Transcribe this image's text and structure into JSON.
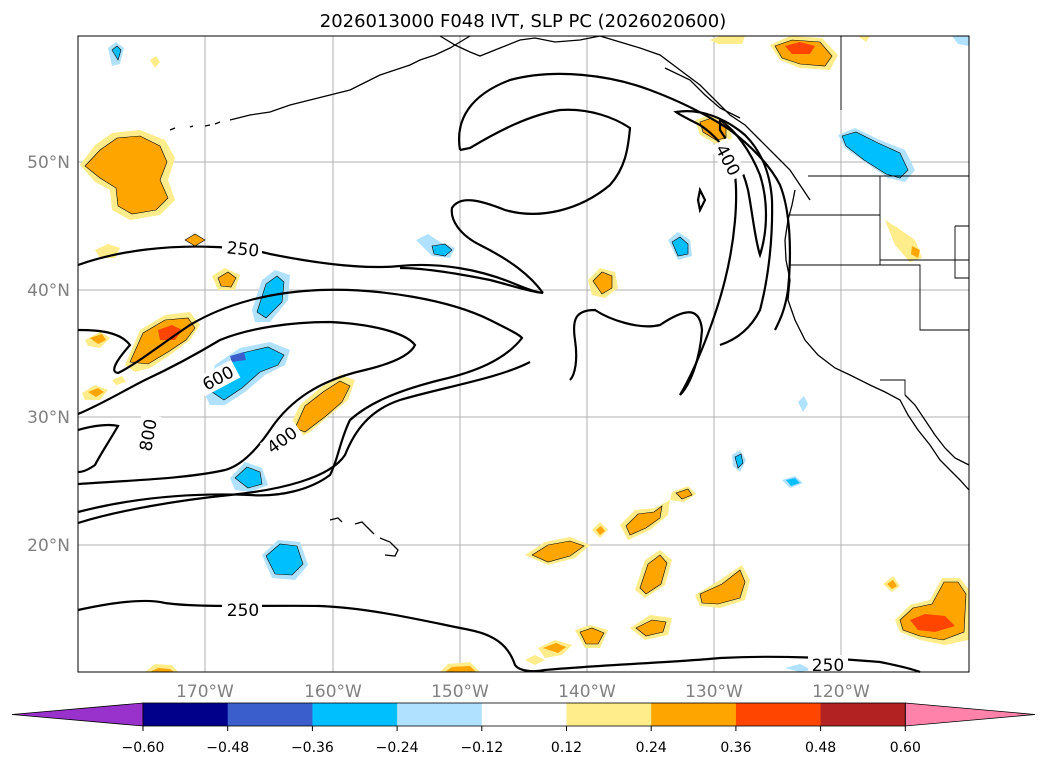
{
  "title": "2026013000 F048 IVT, SLP PC (2026020600)",
  "latitude_labels": [
    "50°N",
    "40°N",
    "30°N",
    "20°N"
  ],
  "longitude_labels": [
    "170°W",
    "160°W",
    "150°W",
    "140°W",
    "130°W",
    "120°W"
  ],
  "contour_labels": [
    "250",
    "600",
    "800",
    "400",
    "400",
    "250",
    "250"
  ],
  "colorbar": {
    "colors": [
      "#9932cc",
      "#00008b",
      "#3a5fcd",
      "#00bfff",
      "#b0e2ff",
      "#ffffff",
      "#ffec8b",
      "#ffa500",
      "#ff4500",
      "#b22222",
      "#ff82ab"
    ],
    "tick_labels": [
      "−0.60",
      "−0.48",
      "−0.36",
      "−0.24",
      "−0.12",
      "0.12",
      "0.24",
      "0.36",
      "0.48",
      "0.60"
    ]
  },
  "colors": {
    "light_orange": "#ffec8b",
    "orange": "#ffa500",
    "red": "#ff4500",
    "light_blue": "#b0e2ff",
    "blue": "#00bfff",
    "medium_blue": "#3a5fcd",
    "gridline": "#b0b0b0",
    "tick_label": "#808080"
  }
}
